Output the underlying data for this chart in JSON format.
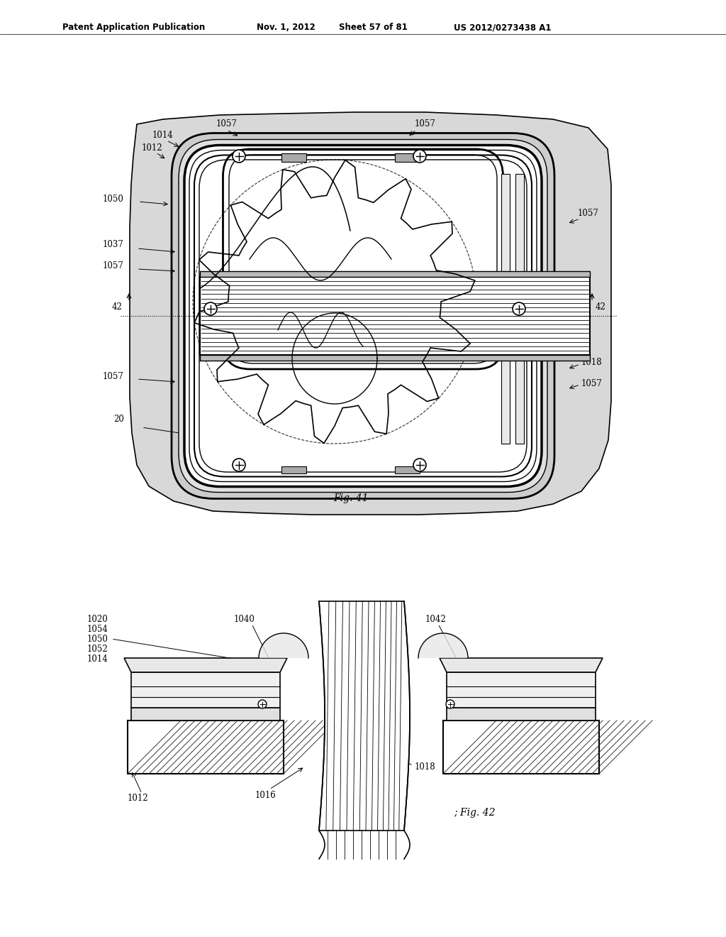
{
  "bg_color": "#ffffff",
  "header_text": "Patent Application Publication",
  "header_date": "Nov. 1, 2012",
  "header_sheet": "Sheet 57 of 81",
  "header_patent": "US 2012/0273438 A1",
  "fig41_label": "Fig. 41",
  "fig42_label": "; Fig. 42",
  "text_color": "#000000",
  "line_color": "#000000"
}
